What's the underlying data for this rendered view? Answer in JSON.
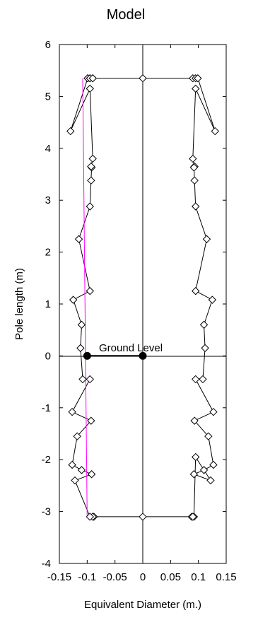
{
  "chart_data": {
    "type": "line",
    "title": "Model",
    "xlabel": "Equivalent Diameter (m.)",
    "ylabel": "Pole length (m)",
    "xlim": [
      -0.15,
      0.15
    ],
    "ylim": [
      -4,
      6
    ],
    "x_ticks": [
      -0.15,
      -0.1,
      -0.05,
      0,
      0.05,
      0.1,
      0.15
    ],
    "x_tick_labels": [
      "-0.15",
      "-0.1",
      "-0.05",
      "0",
      "0.05",
      "0.1",
      "0.15"
    ],
    "y_ticks": [
      -4,
      -3,
      -2,
      -1,
      0,
      1,
      2,
      3,
      4,
      5,
      6
    ],
    "y_tick_labels": [
      "-4",
      "-3",
      "-2",
      "-1",
      "0",
      "1",
      "2",
      "3",
      "4",
      "5",
      "6"
    ],
    "grid": false,
    "series": [
      {
        "color": "#000000",
        "marker": "diamond",
        "x": [
          -0.09,
          -0.095,
          -0.099,
          0,
          0.09,
          0.095,
          0.099,
          0.13,
          0.095,
          0.09,
          0.093,
          0.092,
          0.093,
          0.095,
          0.115,
          0.095,
          0.125,
          0.11,
          0.112,
          0.108,
          0.095,
          0.127,
          0.093,
          0.118,
          0.127,
          0.11,
          0.092,
          0.122,
          0.095,
          0.092,
          0.088,
          0.09,
          0,
          -0.088,
          -0.09,
          -0.095,
          -0.122,
          -0.092,
          -0.11,
          -0.127,
          -0.118,
          -0.093,
          -0.127,
          -0.095,
          -0.108,
          -0.112,
          -0.11,
          -0.125,
          -0.095,
          -0.115,
          -0.095,
          -0.093,
          -0.092,
          -0.093,
          -0.09,
          -0.095,
          -0.13,
          -0.099,
          -0.095,
          -0.09
        ],
        "y": [
          5.35,
          5.35,
          5.35,
          5.35,
          5.35,
          5.35,
          5.35,
          4.33,
          5.15,
          3.8,
          3.65,
          3.63,
          3.38,
          2.88,
          2.25,
          1.25,
          1.08,
          0.6,
          0.15,
          -0.45,
          -0.45,
          -1.08,
          -1.25,
          -1.55,
          -2.1,
          -2.2,
          -2.28,
          -2.4,
          -1.95,
          -3.1,
          -3.1,
          -3.1,
          -3.1,
          -3.1,
          -3.1,
          -3.1,
          -2.4,
          -2.28,
          -2.2,
          -2.1,
          -1.55,
          -1.25,
          -1.08,
          -0.45,
          -0.45,
          0.15,
          0.6,
          1.08,
          1.25,
          2.25,
          2.88,
          3.38,
          3.63,
          3.65,
          3.8,
          5.15,
          4.33,
          5.35,
          5.35,
          5.35
        ]
      },
      {
        "color": "#ff00ff",
        "marker": "none",
        "x": [
          -0.108,
          -0.1
        ],
        "y": [
          5.35,
          -3.1
        ]
      },
      {
        "color": "#000000",
        "marker": "circle",
        "x": [
          -0.1,
          0
        ],
        "y": [
          0,
          0
        ]
      }
    ],
    "annotations": [
      {
        "text": "Ground Level",
        "x": -0.007,
        "y": 0.12
      }
    ],
    "reference_lines": {
      "vertical_at_x": 0,
      "horizontal_at_y": 0
    }
  }
}
